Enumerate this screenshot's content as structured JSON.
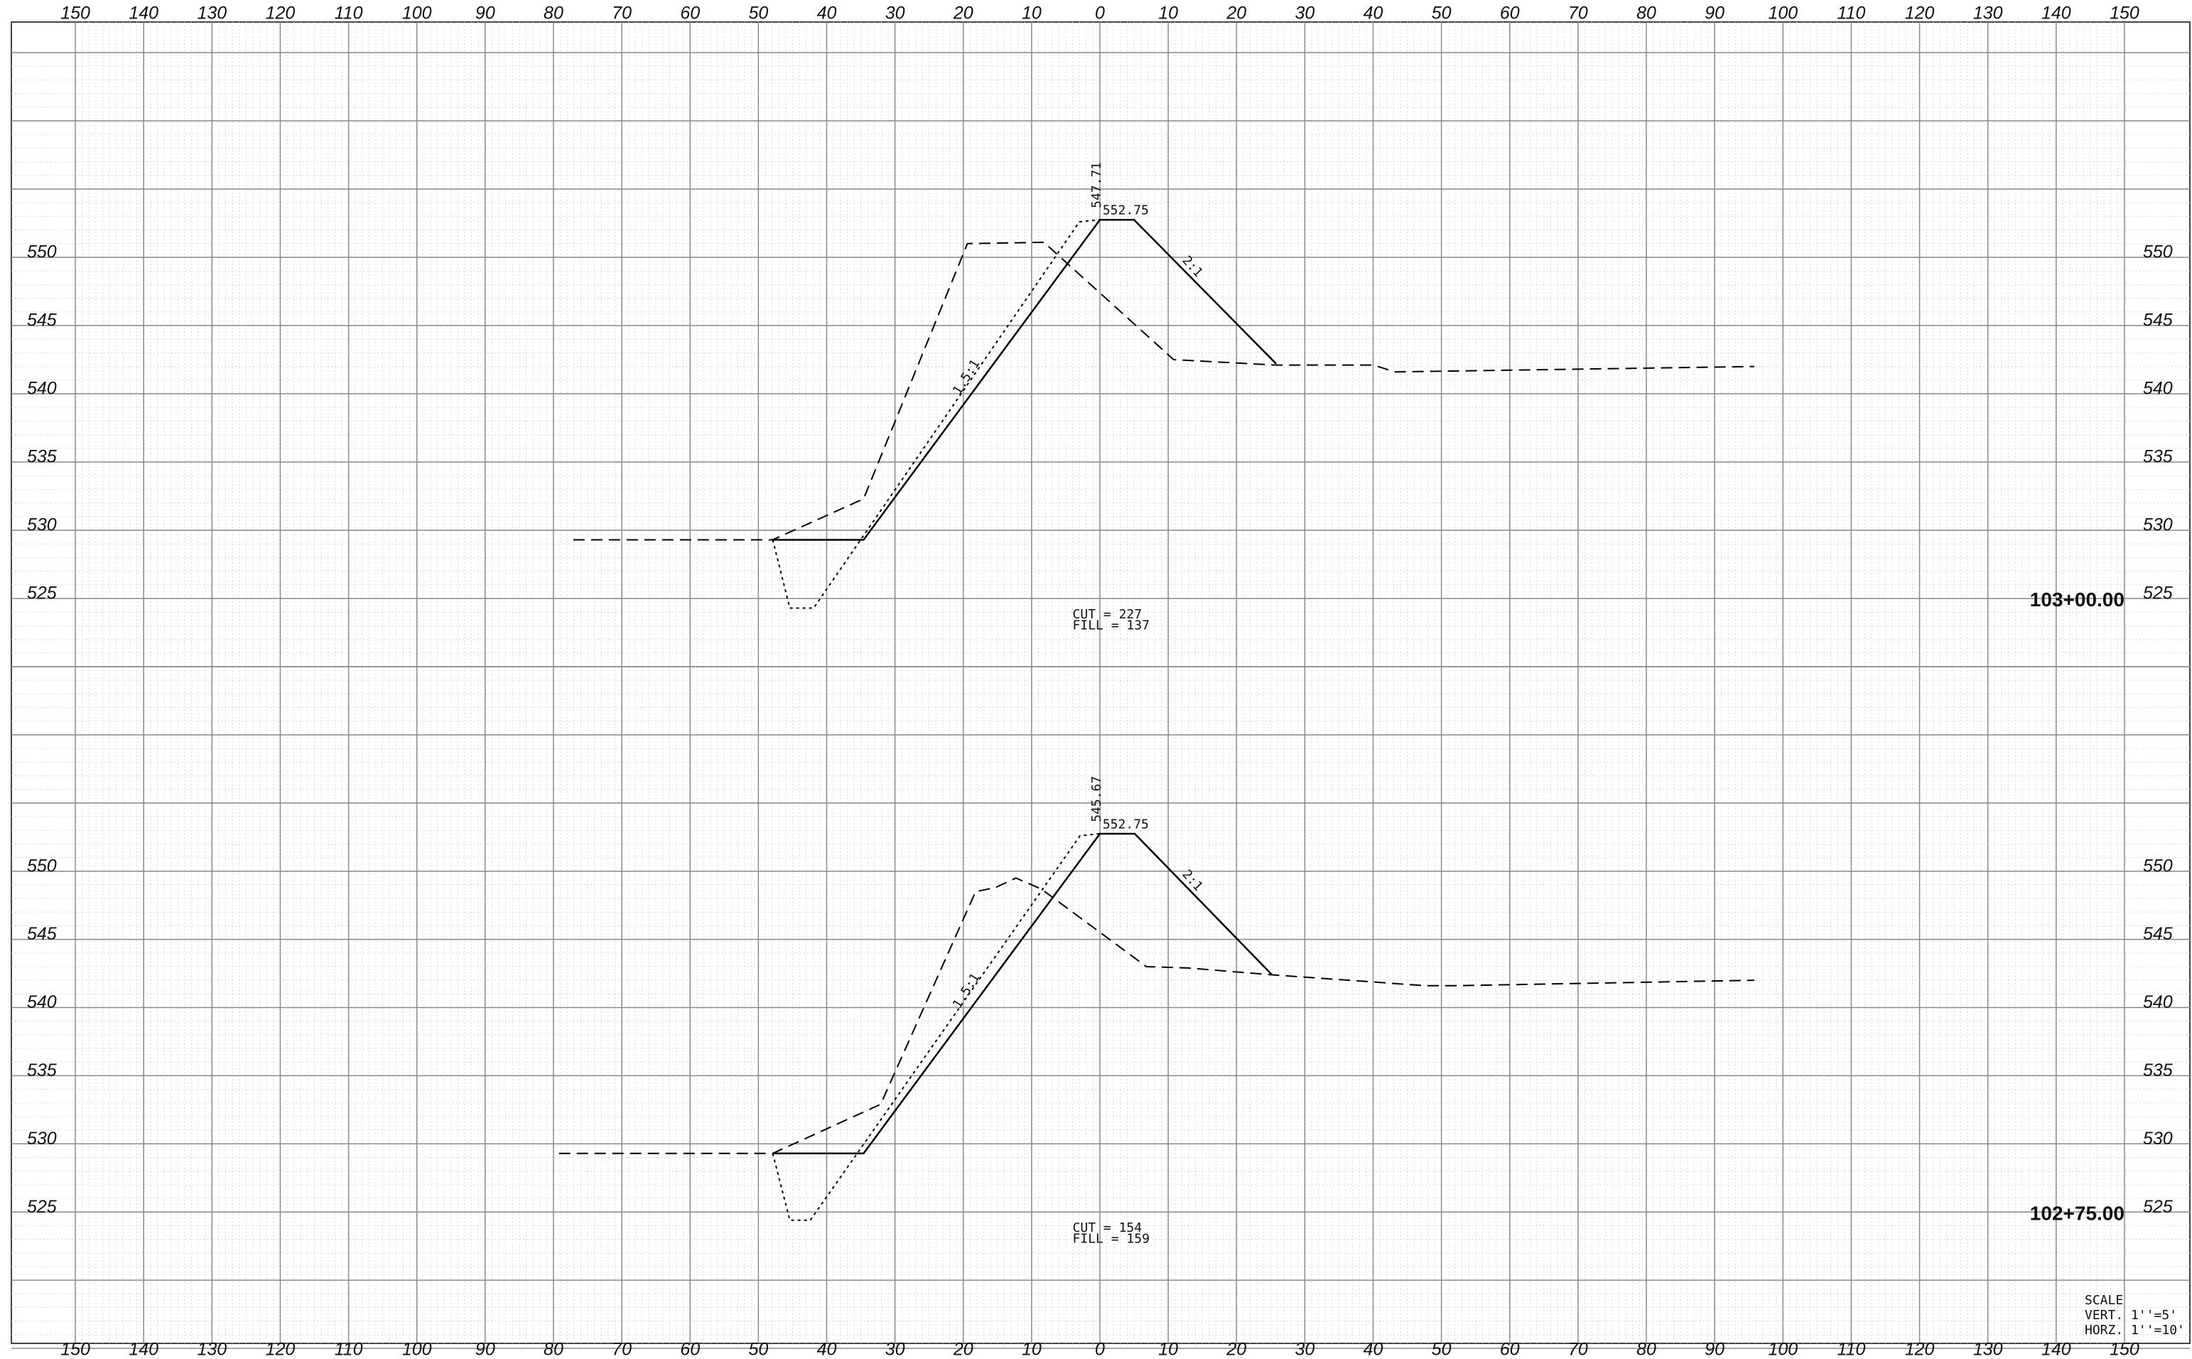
{
  "chart_data": [
    {
      "type": "line",
      "station": "103+00.00",
      "cut_label": "CUT = 227",
      "fill_label": "FILL = 137",
      "annotations": [
        "547.71",
        "552.75",
        "2:1",
        "1.5:1"
      ],
      "xlim": [
        -150,
        150
      ],
      "xticks": [
        {
          "value": -150,
          "label": "150"
        },
        {
          "value": -140,
          "label": "140"
        },
        {
          "value": -130,
          "label": "130"
        },
        {
          "value": -120,
          "label": "120"
        },
        {
          "value": -110,
          "label": "110"
        },
        {
          "value": -100,
          "label": "100"
        },
        {
          "value": -90,
          "label": "90"
        },
        {
          "value": -80,
          "label": "80"
        },
        {
          "value": -70,
          "label": "70"
        },
        {
          "value": -60,
          "label": "60"
        },
        {
          "value": -50,
          "label": "50"
        },
        {
          "value": -40,
          "label": "40"
        },
        {
          "value": -30,
          "label": "30"
        },
        {
          "value": -20,
          "label": "20"
        },
        {
          "value": -10,
          "label": "10"
        },
        0,
        10,
        20,
        30,
        40,
        50,
        60,
        70,
        80,
        90,
        100,
        110,
        120,
        130,
        140,
        150
      ],
      "ylim": [
        520,
        565
      ],
      "yticks": [
        525,
        530,
        535,
        540,
        545,
        550
      ],
      "grid": true,
      "series": [
        {
          "style": "solid",
          "color": "#000",
          "x": [
            -48,
            -34.6,
            0,
            5,
            25.8
          ],
          "values": [
            529.3,
            529.3,
            552.75,
            552.75,
            542.2
          ]
        },
        {
          "style": "dashed",
          "color": "#000",
          "x": [
            -77.1,
            -47.9,
            -34.6,
            -19.4,
            -8.2,
            10.8,
            25.8,
            40.1,
            43.2,
            95.8
          ],
          "values": [
            529.3,
            529.3,
            532.3,
            551.0,
            551.1,
            542.5,
            542.1,
            542.1,
            541.6,
            542.0
          ]
        },
        {
          "style": "dotted",
          "color": "#000",
          "x": [
            -47.9,
            -45.4,
            -41.9,
            -3,
            0
          ],
          "values": [
            529.3,
            524.3,
            524.3,
            552.6,
            552.75
          ]
        }
      ]
    },
    {
      "type": "line",
      "station": "102+75.00",
      "cut_label": "CUT = 154",
      "fill_label": "FILL = 159",
      "annotations": [
        "545.67",
        "552.75",
        "2:1",
        "1.5:1"
      ],
      "xlim": [
        -150,
        150
      ],
      "xticks": [
        {
          "value": -150,
          "label": "150"
        },
        {
          "value": -140,
          "label": "140"
        },
        {
          "value": -130,
          "label": "130"
        },
        {
          "value": -120,
          "label": "120"
        },
        {
          "value": -110,
          "label": "110"
        },
        {
          "value": -100,
          "label": "100"
        },
        {
          "value": -90,
          "label": "90"
        },
        {
          "value": -80,
          "label": "80"
        },
        {
          "value": -70,
          "label": "70"
        },
        {
          "value": -60,
          "label": "60"
        },
        {
          "value": -50,
          "label": "50"
        },
        {
          "value": -40,
          "label": "40"
        },
        {
          "value": -30,
          "label": "30"
        },
        {
          "value": -20,
          "label": "20"
        },
        {
          "value": -10,
          "label": "10"
        },
        0,
        10,
        20,
        30,
        40,
        50,
        60,
        70,
        80,
        90,
        100,
        110,
        120,
        130,
        140,
        150
      ],
      "ylim": [
        515,
        565
      ],
      "yticks": [
        525,
        530,
        535,
        540,
        545,
        550
      ],
      "grid": true,
      "series": [
        {
          "style": "solid",
          "color": "#000",
          "x": [
            -47.9,
            -34.6,
            0,
            5.1,
            25.2
          ],
          "values": [
            529.3,
            529.3,
            552.75,
            552.75,
            542.4
          ]
        },
        {
          "style": "dashed",
          "color": "#000",
          "x": [
            -79.2,
            -47.9,
            -32.1,
            -18.2,
            -15.3,
            -12.3,
            -8.6,
            6.8,
            12.9,
            25.2,
            47.7,
            51.8,
            95.8
          ],
          "values": [
            529.3,
            529.3,
            532.9,
            548.5,
            548.8,
            549.5,
            548.7,
            543.0,
            542.9,
            542.4,
            541.6,
            541.6,
            542.0
          ]
        },
        {
          "style": "dotted",
          "color": "#000",
          "x": [
            -47.9,
            -45.4,
            -42.4,
            -2.9,
            0
          ],
          "values": [
            529.3,
            524.4,
            524.4,
            552.6,
            552.75
          ]
        }
      ]
    }
  ],
  "scale_note": [
    "SCALE",
    "VERT. 1''=5'",
    "HORZ. 1''=10'"
  ]
}
